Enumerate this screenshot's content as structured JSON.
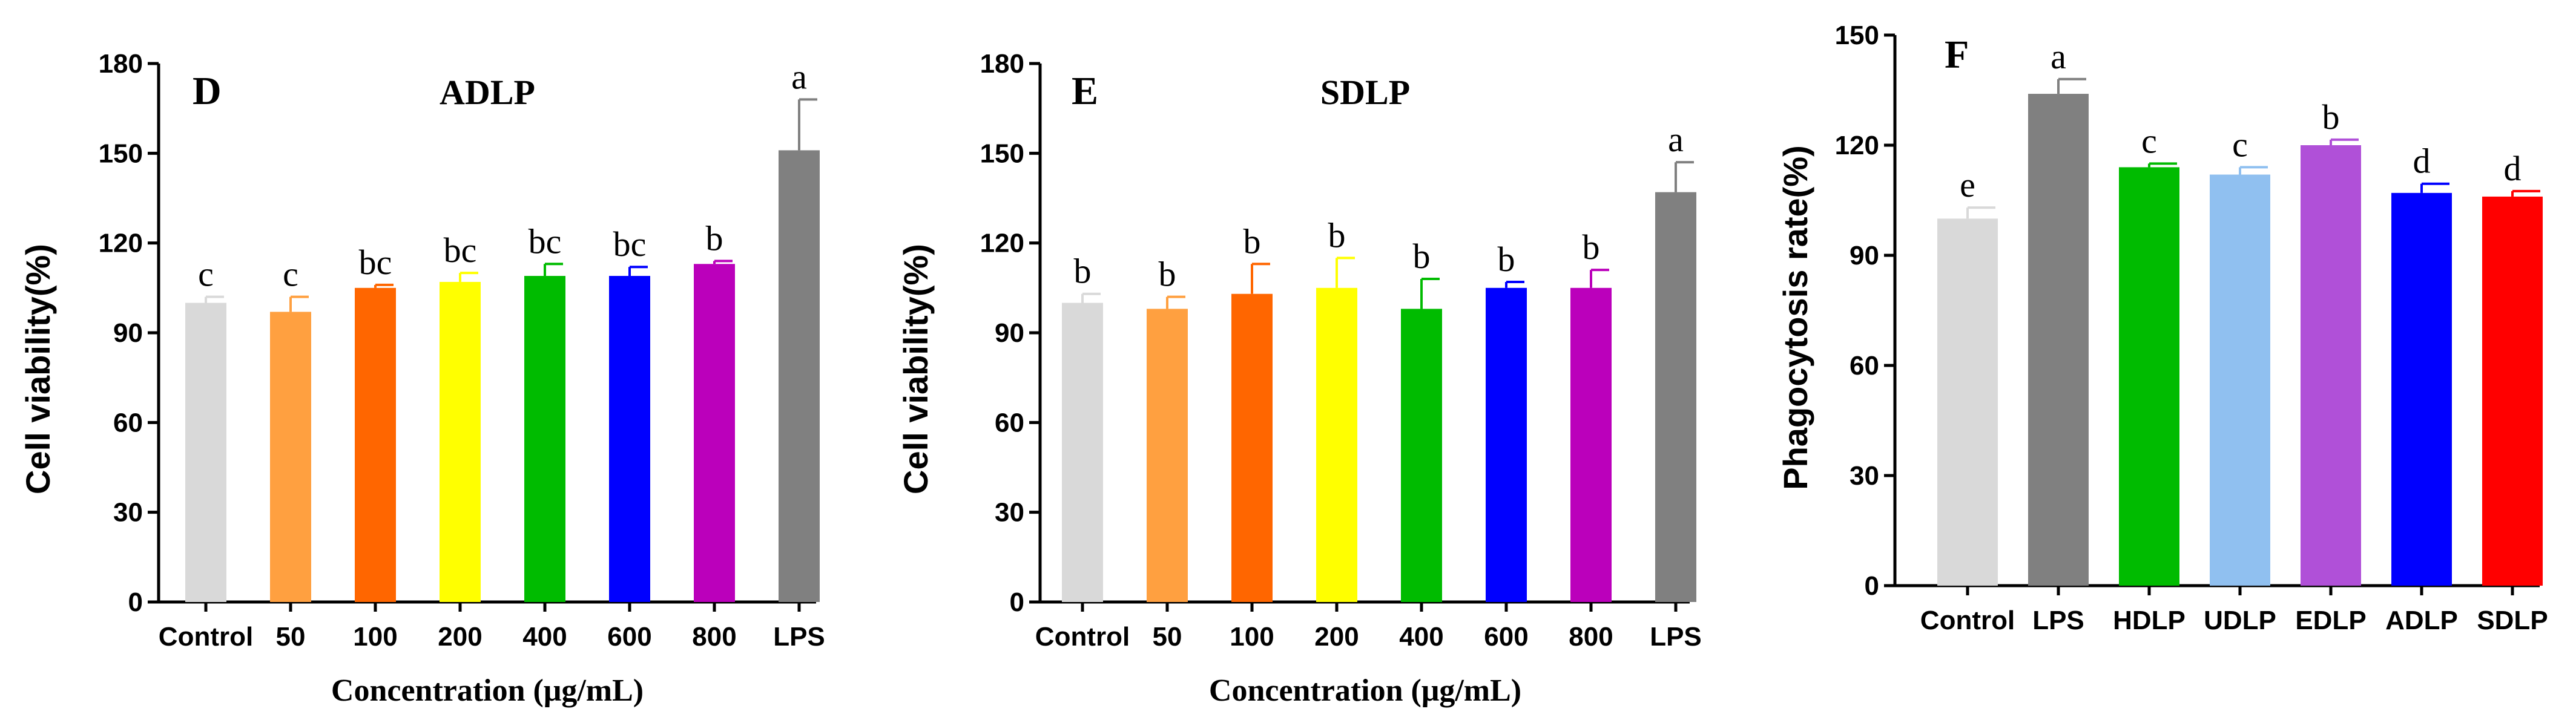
{
  "chart_data": [
    {
      "type": "bar",
      "panel_letter": "D",
      "title": "ADLP",
      "xlabel": "Concentration (μg/mL)",
      "ylabel": "Cell viability(%)",
      "ylim": [
        0,
        180
      ],
      "yticks": [
        0,
        30,
        60,
        90,
        120,
        150,
        180
      ],
      "categories": [
        "Control",
        "50",
        "100",
        "200",
        "400",
        "600",
        "800",
        "LPS"
      ],
      "values": [
        100,
        97,
        105,
        107,
        109,
        109,
        113,
        151
      ],
      "errors": [
        2,
        5,
        1,
        3,
        4,
        3,
        1,
        17
      ],
      "significance": [
        "c",
        "c",
        "bc",
        "bc",
        "bc",
        "bc",
        "b",
        "a"
      ],
      "colors": [
        "#d9d9d9",
        "#ffa040",
        "#ff6600",
        "#ffff00",
        "#00bb00",
        "#0000ff",
        "#bb00bb",
        "#808080"
      ]
    },
    {
      "type": "bar",
      "panel_letter": "E",
      "title": "SDLP",
      "xlabel": "Concentration (μg/mL)",
      "ylabel": "Cell viability(%)",
      "ylim": [
        0,
        180
      ],
      "yticks": [
        0,
        30,
        60,
        90,
        120,
        150,
        180
      ],
      "categories": [
        "Control",
        "50",
        "100",
        "200",
        "400",
        "600",
        "800",
        "LPS"
      ],
      "values": [
        100,
        98,
        103,
        105,
        98,
        105,
        105,
        137
      ],
      "errors": [
        3,
        4,
        10,
        10,
        10,
        2,
        6,
        10
      ],
      "significance": [
        "b",
        "b",
        "b",
        "b",
        "b",
        "b",
        "b",
        "a"
      ],
      "colors": [
        "#d9d9d9",
        "#ffa040",
        "#ff6600",
        "#ffff00",
        "#00bb00",
        "#0000ff",
        "#bb00bb",
        "#808080"
      ]
    },
    {
      "type": "bar",
      "panel_letter": "F",
      "title": "",
      "xlabel": "",
      "ylabel": "Phagocytosis rate(%)",
      "ylim": [
        0,
        150
      ],
      "yticks": [
        0,
        30,
        60,
        90,
        120,
        150
      ],
      "categories": [
        "Control",
        "LPS",
        "HDLP",
        "UDLP",
        "EDLP",
        "ADLP",
        "SDLP"
      ],
      "values": [
        100,
        134,
        114,
        112,
        120,
        107,
        106
      ],
      "errors": [
        3,
        4,
        1,
        2,
        1.5,
        2.5,
        1.5
      ],
      "significance": [
        "e",
        "a",
        "c",
        "c",
        "b",
        "d",
        "d"
      ],
      "colors": [
        "#d9d9d9",
        "#808080",
        "#00bb00",
        "#90c0f0",
        "#b050d8",
        "#0000ff",
        "#ff0000"
      ]
    }
  ]
}
